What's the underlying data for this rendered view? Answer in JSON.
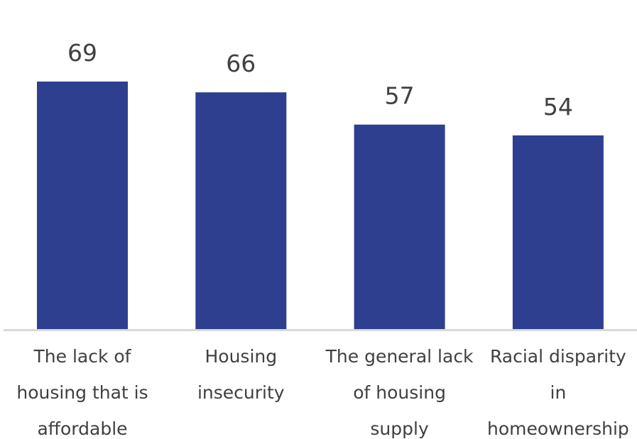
{
  "chart_data": {
    "type": "bar",
    "categories": [
      [
        "The lack of",
        "housing that is",
        "affordable"
      ],
      [
        "Housing",
        "insecurity"
      ],
      [
        "The general lack",
        "of housing",
        "supply"
      ],
      [
        "Racial disparity",
        "in",
        "homeownership"
      ]
    ],
    "values": [
      69,
      66,
      57,
      54
    ],
    "title": "",
    "xlabel": "",
    "ylabel": "",
    "ylim": [
      0,
      69
    ],
    "grid": false,
    "legend": "none",
    "data_labels": true
  },
  "colors": {
    "bar": "#2e3f8f",
    "axis": "#d9d9d9",
    "text": "#404040"
  }
}
